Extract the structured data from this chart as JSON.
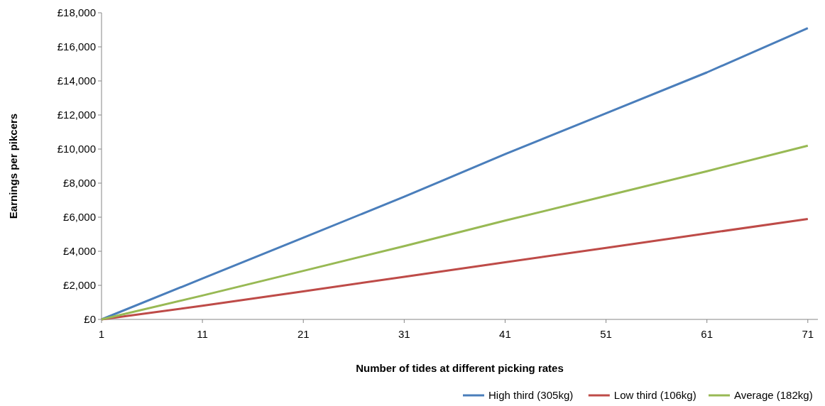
{
  "chart_data": {
    "type": "line",
    "xlabel": "Number of tides at different picking rates",
    "ylabel": "Earnings per pikcers",
    "x": [
      1,
      11,
      21,
      31,
      41,
      51,
      61,
      71
    ],
    "xlim": [
      1,
      72
    ],
    "xticks": [
      1,
      11,
      21,
      31,
      41,
      51,
      61,
      71
    ],
    "ylim": [
      0,
      18000
    ],
    "yticks": [
      {
        "value": 0,
        "label": "£0"
      },
      {
        "value": 2000,
        "label": "£2,000"
      },
      {
        "value": 4000,
        "label": "£4,000"
      },
      {
        "value": 6000,
        "label": "£6,000"
      },
      {
        "value": 8000,
        "label": "£8,000"
      },
      {
        "value": 10000,
        "label": "£10,000"
      },
      {
        "value": 12000,
        "label": "£12,000"
      },
      {
        "value": 14000,
        "label": "£14,000"
      },
      {
        "value": 16000,
        "label": "£16,000"
      },
      {
        "value": 18000,
        "label": "£18,000"
      }
    ],
    "series": [
      {
        "name": "High third (305kg)",
        "color": "#4a7ebb",
        "values": [
          0,
          2400,
          4800,
          7200,
          9700,
          12100,
          14500,
          17100
        ]
      },
      {
        "name": "Low third (106kg)",
        "color": "#be4b48",
        "values": [
          0,
          800,
          1650,
          2500,
          3350,
          4200,
          5050,
          5900
        ]
      },
      {
        "name": "Average (182kg)",
        "color": "#98b954",
        "values": [
          0,
          1400,
          2850,
          4300,
          5800,
          7250,
          8700,
          10200
        ]
      }
    ],
    "grid": false,
    "legend": "bottom right",
    "marker": "none",
    "line_style": "solid"
  }
}
